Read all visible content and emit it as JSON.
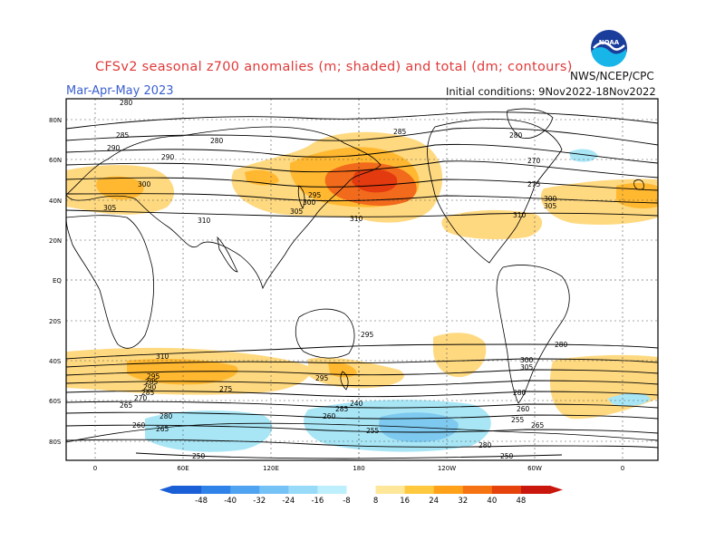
{
  "header": {
    "title": "CFSv2 seasonal z700 anomalies (m; shaded) and total (dm; contours)",
    "season": "Mar-Apr-May 2023",
    "initial_conditions": "Initial conditions: 9Nov2022-18Nov2022",
    "org": "NWS/NCEP/CPC",
    "logo_text": "NOAA"
  },
  "map": {
    "lat_labels": [
      "80N",
      "60N",
      "40N",
      "20N",
      "EQ",
      "20S",
      "40S",
      "60S",
      "80S"
    ],
    "lon_labels": [
      "0",
      "60E",
      "120E",
      "180",
      "120W",
      "60W",
      "0"
    ],
    "contour_labels": [
      "280",
      "285",
      "290",
      "300",
      "305",
      "310",
      "280",
      "290",
      "295",
      "300",
      "305",
      "310",
      "285",
      "280",
      "270",
      "275",
      "300",
      "305",
      "310",
      "280",
      "295",
      "300",
      "305",
      "310",
      "295",
      "285",
      "290",
      "285",
      "280",
      "275",
      "270",
      "260",
      "265",
      "240",
      "280",
      "255",
      "260",
      "250",
      "260",
      "265",
      "280",
      "285",
      "265",
      "255",
      "250",
      "295"
    ],
    "colors": {
      "warm_light": "#ffd980",
      "warm_mid": "#ffb830",
      "warm_strong": "#f26a1b",
      "warm_deep": "#e33a10",
      "cool_light": "#a8e6f6",
      "cool_mid": "#7ec9ef"
    }
  },
  "colorbar": {
    "labels": [
      "-48",
      "-40",
      "-32",
      "-24",
      "-16",
      "-8",
      "8",
      "16",
      "24",
      "32",
      "40",
      "48"
    ],
    "colors": [
      "#1b5fd6",
      "#2f82e8",
      "#4fa3f1",
      "#74c2f6",
      "#98dbf9",
      "#bdeffc",
      "#ffffff",
      "#ffe79a",
      "#ffc93f",
      "#ffa21a",
      "#f57312",
      "#e6420c",
      "#c9170d"
    ]
  }
}
